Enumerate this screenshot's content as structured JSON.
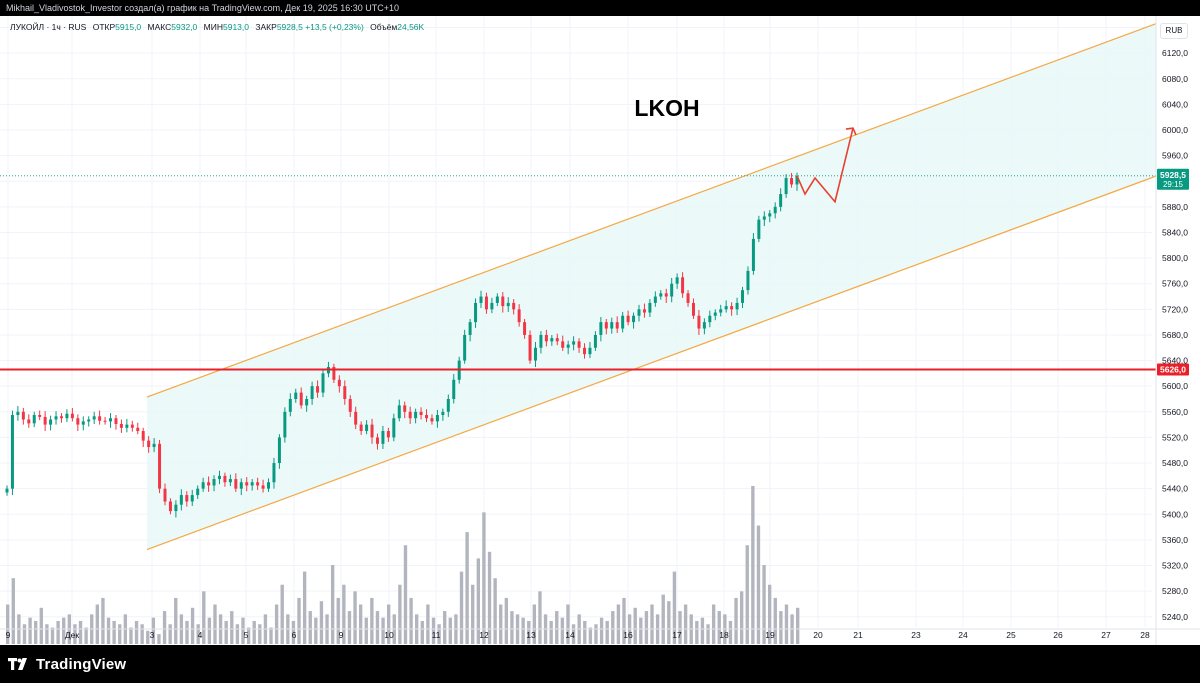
{
  "header": {
    "text": "Mikhail_Vladivostok_Investor создал(а) график на TradingView.com, Дек 19, 2025 16:30 UTC+10"
  },
  "legend": {
    "symbol": "ЛУКОЙЛ · 1ч · RUS",
    "open_label": "ОТКР",
    "open": "5915,0",
    "high_label": "МАКС",
    "high": "5932,0",
    "low_label": "МИН",
    "low": "5913,0",
    "close_label": "ЗАКР",
    "close": "5928,5",
    "change": "+13,5 (+0,23%)",
    "volume_label": "Объём",
    "volume": "24,56K"
  },
  "currency": "RUB",
  "footer": {
    "brand": "TradingView"
  },
  "colors": {
    "up": "#089981",
    "down": "#f23645",
    "channel_line": "#f5a742",
    "channel_fill": "#e8f8f8",
    "support_line": "#e8202a",
    "arrow": "#e8412f",
    "volume": "#b2b5be",
    "last_price_badge": "#089981",
    "support_badge": "#e8202a"
  },
  "chart_data": {
    "type": "candlestick",
    "title": "LKOH",
    "instrument": "ЛУКОЙЛ",
    "timeframe": "1ч",
    "x_tick_labels": [
      "9",
      "Дек",
      "3",
      "4",
      "5",
      "6",
      "9",
      "10",
      "11",
      "12",
      "13",
      "14",
      "16",
      "17",
      "18",
      "19",
      "20",
      "21",
      "23",
      "24",
      "25",
      "26",
      "27",
      "28"
    ],
    "y_tick_labels": [
      "6160,0",
      "6120,0",
      "6080,0",
      "6040,0",
      "6000,0",
      "5960,0",
      "5920,0",
      "5880,0",
      "5840,0",
      "5800,0",
      "5760,0",
      "5720,0",
      "5680,0",
      "5640,0",
      "5600,0",
      "5560,0",
      "5520,0",
      "5480,0",
      "5440,0",
      "5400,0",
      "5360,0",
      "5320,0",
      "5280,0",
      "5240,0"
    ],
    "y_ticks": [
      6160,
      6120,
      6080,
      6040,
      6000,
      5960,
      5920,
      5880,
      5840,
      5800,
      5760,
      5720,
      5680,
      5640,
      5600,
      5560,
      5520,
      5480,
      5440,
      5400,
      5360,
      5320,
      5280,
      5240
    ],
    "ylim": [
      5224,
      6178
    ],
    "price_path": [
      5440,
      5555,
      5560,
      5548,
      5542,
      5555,
      5552,
      5540,
      5548,
      5553,
      5550,
      5557,
      5550,
      5540,
      5545,
      5548,
      5553,
      5546,
      5545,
      5550,
      5541,
      5535,
      5540,
      5535,
      5530,
      5515,
      5505,
      5510,
      5440,
      5420,
      5405,
      5415,
      5430,
      5420,
      5430,
      5440,
      5450,
      5445,
      5455,
      5460,
      5450,
      5455,
      5440,
      5450,
      5445,
      5450,
      5445,
      5440,
      5450,
      5480,
      5520,
      5560,
      5580,
      5590,
      5570,
      5580,
      5600,
      5590,
      5620,
      5630,
      5610,
      5600,
      5580,
      5560,
      5540,
      5530,
      5540,
      5520,
      5510,
      5530,
      5520,
      5550,
      5570,
      5560,
      5550,
      5560,
      5555,
      5550,
      5545,
      5555,
      5560,
      5580,
      5610,
      5640,
      5680,
      5700,
      5730,
      5740,
      5720,
      5730,
      5740,
      5725,
      5730,
      5720,
      5700,
      5680,
      5640,
      5660,
      5680,
      5670,
      5675,
      5670,
      5660,
      5665,
      5670,
      5660,
      5650,
      5660,
      5680,
      5700,
      5690,
      5700,
      5690,
      5710,
      5700,
      5710,
      5720,
      5715,
      5730,
      5740,
      5745,
      5740,
      5760,
      5770,
      5745,
      5730,
      5710,
      5690,
      5700,
      5710,
      5715,
      5720,
      5725,
      5720,
      5730,
      5750,
      5780,
      5830,
      5860,
      5865,
      5870,
      5880,
      5900,
      5925,
      5915,
      5928.5
    ],
    "volume_values": [
      12,
      20,
      9,
      6,
      8,
      7,
      11,
      6,
      5,
      7,
      8,
      9,
      6,
      7,
      5,
      9,
      12,
      14,
      8,
      7,
      6,
      9,
      5,
      7,
      6,
      4,
      8,
      3,
      10,
      6,
      14,
      9,
      7,
      11,
      6,
      16,
      8,
      12,
      9,
      7,
      10,
      6,
      8,
      5,
      7,
      6,
      9,
      5,
      12,
      18,
      9,
      7,
      14,
      22,
      10,
      8,
      13,
      9,
      24,
      14,
      18,
      10,
      16,
      12,
      8,
      14,
      10,
      8,
      12,
      9,
      18,
      30,
      14,
      9,
      7,
      12,
      8,
      6,
      10,
      8,
      9,
      22,
      34,
      18,
      26,
      40,
      28,
      20,
      12,
      14,
      10,
      9,
      8,
      7,
      12,
      16,
      9,
      7,
      10,
      8,
      12,
      6,
      9,
      7,
      5,
      6,
      8,
      7,
      10,
      12,
      14,
      9,
      11,
      8,
      10,
      12,
      9,
      15,
      13,
      22,
      10,
      12,
      9,
      7,
      8,
      6,
      12,
      10,
      9,
      7,
      14,
      16,
      30,
      48,
      36,
      24,
      18,
      14,
      10,
      12,
      9,
      11
    ],
    "support_level": 5626.0,
    "support_label": "5626,0",
    "last_price": 5928.5,
    "last_price_label": "5928,5",
    "countdown_label": "29:15",
    "channel": {
      "upper_start": 5583,
      "upper_end": 6166,
      "lower_start": 5345,
      "lower_end": 5928
    },
    "projection_path": [
      5928.5,
      5900,
      5925,
      5888,
      6003
    ]
  }
}
